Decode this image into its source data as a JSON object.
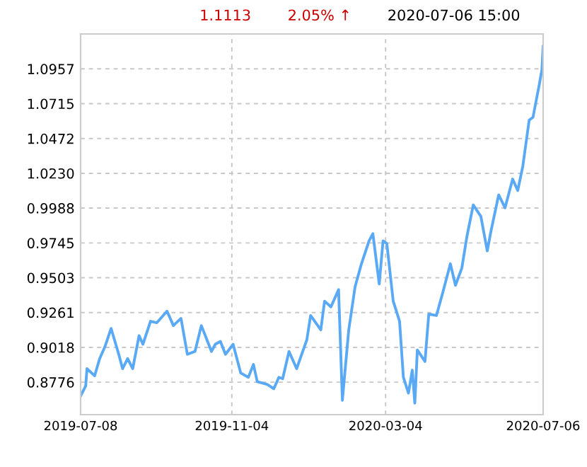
{
  "chart_data": {
    "type": "line",
    "annotations": [
      "1.1113",
      "2.05% ↑",
      "2020-07-06 15:00"
    ],
    "x": [
      "2019-07-08",
      "2019-07-12",
      "2019-07-13",
      "2019-07-19",
      "2019-07-23",
      "2019-07-27",
      "2019-08-01",
      "2019-08-07",
      "2019-08-10",
      "2019-08-14",
      "2019-08-18",
      "2019-08-23",
      "2019-08-26",
      "2019-09-01",
      "2019-09-06",
      "2019-09-14",
      "2019-09-19",
      "2019-09-25",
      "2019-09-30",
      "2019-10-06",
      "2019-10-11",
      "2019-10-19",
      "2019-10-22",
      "2019-10-26",
      "2019-10-30",
      "2019-11-05",
      "2019-11-11",
      "2019-11-17",
      "2019-11-21",
      "2019-11-24",
      "2019-12-02",
      "2019-12-07",
      "2019-12-11",
      "2019-12-14",
      "2019-12-19",
      "2019-12-25",
      "2020-01-02",
      "2020-01-05",
      "2020-01-13",
      "2020-01-16",
      "2020-01-21",
      "2020-01-27",
      "2020-01-30",
      "2020-02-04",
      "2020-02-09",
      "2020-02-14",
      "2020-02-20",
      "2020-02-23",
      "2020-02-28",
      "2020-03-02",
      "2020-03-05",
      "2020-03-10",
      "2020-03-15",
      "2020-03-18",
      "2020-03-22",
      "2020-03-25",
      "2020-03-27",
      "2020-03-29",
      "2020-04-04",
      "2020-04-07",
      "2020-04-13",
      "2020-04-18",
      "2020-04-24",
      "2020-04-28",
      "2020-05-03",
      "2020-05-07",
      "2020-05-12",
      "2020-05-18",
      "2020-05-23",
      "2020-05-26",
      "2020-06-01",
      "2020-06-06",
      "2020-06-12",
      "2020-06-16",
      "2020-06-20",
      "2020-06-25",
      "2020-06-28",
      "2020-07-03",
      "2020-07-05",
      "2020-07-06"
    ],
    "series": [
      {
        "color": "#5aa9f5",
        "values": [
          0.868,
          0.875,
          0.887,
          0.882,
          0.894,
          0.902,
          0.915,
          0.897,
          0.887,
          0.894,
          0.887,
          0.91,
          0.904,
          0.92,
          0.919,
          0.927,
          0.917,
          0.922,
          0.897,
          0.899,
          0.917,
          0.899,
          0.904,
          0.906,
          0.897,
          0.904,
          0.884,
          0.881,
          0.89,
          0.878,
          0.876,
          0.873,
          0.881,
          0.88,
          0.899,
          0.887,
          0.907,
          0.924,
          0.914,
          0.934,
          0.93,
          0.942,
          0.865,
          0.914,
          0.944,
          0.96,
          0.976,
          0.981,
          0.946,
          0.976,
          0.974,
          0.934,
          0.92,
          0.881,
          0.87,
          0.886,
          0.863,
          0.9,
          0.892,
          0.925,
          0.924,
          0.94,
          0.96,
          0.945,
          0.957,
          0.979,
          1.001,
          0.993,
          0.969,
          0.983,
          1.008,
          0.999,
          1.019,
          1.011,
          1.028,
          1.06,
          1.062,
          1.085,
          1.095,
          1.1113
        ]
      }
    ],
    "xlim": [
      "2019-07-08",
      "2020-07-06"
    ],
    "xticks": [
      "2019-07-08",
      "2019-11-04",
      "2020-03-04",
      "2020-07-06"
    ],
    "ylim": [
      0.855,
      1.12
    ],
    "yticks": [
      0.8776,
      0.9018,
      0.9261,
      0.9503,
      0.9745,
      0.9988,
      {
        "value": 1.023,
        "label": "1.0230"
      },
      1.0472,
      1.0715,
      1.0957
    ],
    "grid": true,
    "marker": "none",
    "line_style": "solid"
  }
}
